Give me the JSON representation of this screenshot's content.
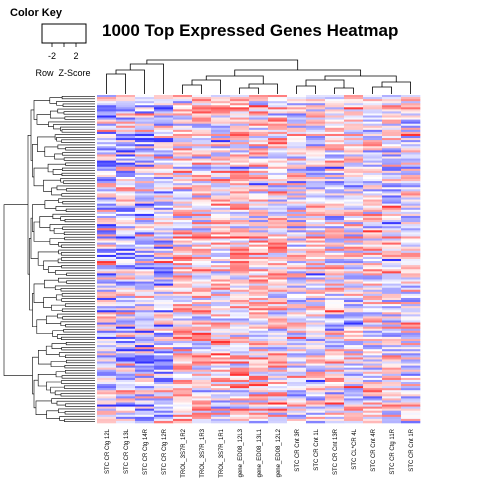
{
  "chart_data": {
    "type": "heatmap",
    "title": "1000 Top Expressed Genes Heatmap",
    "color_key": {
      "title": "Color Key",
      "axis_label": "Row  Z-Score",
      "ticks": [
        "-2",
        "2"
      ],
      "low_color": "#3333ff",
      "mid_color": "#ffffff",
      "high_color": "#ff3333"
    },
    "columns": [
      "STC CR Ctg 12L",
      "STC CR Ctg 13L",
      "STC CR Ctg 14R",
      "STC CR Ctg 12R",
      "TROL_3S7R_1R2",
      "TROL_3S7R_1R3",
      "TROL_3S7R_1R1",
      "gene_ED08_12L3",
      "gene_ED08_13L1",
      "gene_ED08_12L2",
      "STC CR Cnt 3R",
      "STC CR Cnt 1L",
      "STC CR Cnt 13R",
      "STC CL*CR 4L",
      "STC CR Cnt 4R",
      "STC CR Ctg 11R",
      "STC CR Cnt 1R"
    ],
    "row_count": 1000,
    "value_range": [
      -2,
      2
    ]
  }
}
